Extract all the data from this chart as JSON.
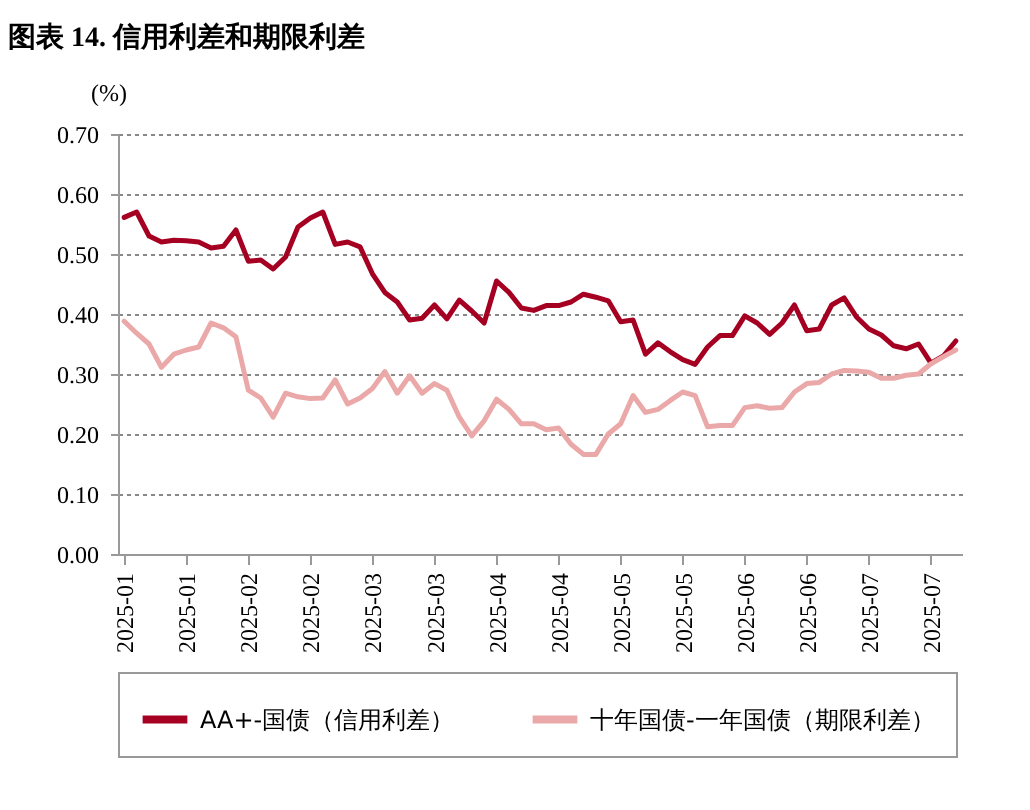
{
  "chart_data": {
    "type": "line",
    "title": "图表 14. 信用利差和期限利差",
    "ylabel": "(%)",
    "categories": [
      "2025-01",
      null,
      null,
      null,
      null,
      "2025-01",
      null,
      null,
      null,
      null,
      "2025-02",
      null,
      null,
      null,
      null,
      "2025-02",
      null,
      null,
      null,
      null,
      "2025-03",
      null,
      null,
      null,
      null,
      "2025-03",
      null,
      null,
      null,
      null,
      "2025-04",
      null,
      null,
      null,
      null,
      "2025-04",
      null,
      null,
      null,
      null,
      "2025-05",
      null,
      null,
      null,
      null,
      "2025-05",
      null,
      null,
      null,
      null,
      "2025-06",
      null,
      null,
      null,
      null,
      "2025-06",
      null,
      null,
      null,
      null,
      "2025-07",
      null,
      null,
      null,
      null,
      "2025-07",
      null,
      null
    ],
    "series": [
      {
        "name": "AA+-国债（信用利差）",
        "color": "#a50021",
        "values": [
          0.561,
          0.57,
          0.53,
          0.52,
          0.523,
          0.522,
          0.52,
          0.51,
          0.513,
          0.54,
          0.488,
          0.49,
          0.475,
          0.495,
          0.545,
          0.56,
          0.57,
          0.516,
          0.52,
          0.512,
          0.467,
          0.436,
          0.42,
          0.39,
          0.393,
          0.415,
          0.392,
          0.423,
          0.405,
          0.385,
          0.455,
          0.436,
          0.41,
          0.406,
          0.414,
          0.414,
          0.42,
          0.433,
          0.428,
          0.422,
          0.387,
          0.39,
          0.333,
          0.352,
          0.337,
          0.324,
          0.316,
          0.345,
          0.364,
          0.364,
          0.397,
          0.385,
          0.366,
          0.385,
          0.415,
          0.372,
          0.375,
          0.415,
          0.427,
          0.395,
          0.375,
          0.365,
          0.347,
          0.342,
          0.35,
          0.318,
          0.33,
          0.355
        ]
      },
      {
        "name": "十年国债-一年国债（期限利差）",
        "color": "#eaa9a8",
        "values": [
          0.388,
          0.368,
          0.35,
          0.311,
          0.333,
          0.34,
          0.345,
          0.385,
          0.377,
          0.362,
          0.273,
          0.26,
          0.228,
          0.268,
          0.262,
          0.259,
          0.26,
          0.29,
          0.25,
          0.26,
          0.276,
          0.304,
          0.268,
          0.297,
          0.268,
          0.284,
          0.273,
          0.228,
          0.197,
          0.222,
          0.258,
          0.241,
          0.217,
          0.217,
          0.207,
          0.21,
          0.183,
          0.166,
          0.166,
          0.2,
          0.217,
          0.264,
          0.236,
          0.241,
          0.256,
          0.27,
          0.264,
          0.212,
          0.214,
          0.214,
          0.244,
          0.247,
          0.243,
          0.244,
          0.27,
          0.284,
          0.286,
          0.3,
          0.306,
          0.305,
          0.303,
          0.293,
          0.293,
          0.298,
          0.3,
          0.317,
          0.329,
          0.34
        ]
      }
    ],
    "ylim": [
      0,
      0.7
    ],
    "yticks": [
      {
        "value": 0,
        "label": "0.00"
      },
      {
        "value": 0.1,
        "label": "0.10"
      },
      {
        "value": 0.2,
        "label": "0.20"
      },
      {
        "value": 0.3,
        "label": "0.30"
      },
      {
        "value": 0.4,
        "label": "0.40"
      },
      {
        "value": 0.5,
        "label": "0.50"
      },
      {
        "value": 0.6,
        "label": "0.60"
      },
      {
        "value": 0.7,
        "label": "0.70"
      }
    ],
    "grid": "y",
    "legend": "bottom",
    "marker": "none",
    "line_style": "solid"
  }
}
